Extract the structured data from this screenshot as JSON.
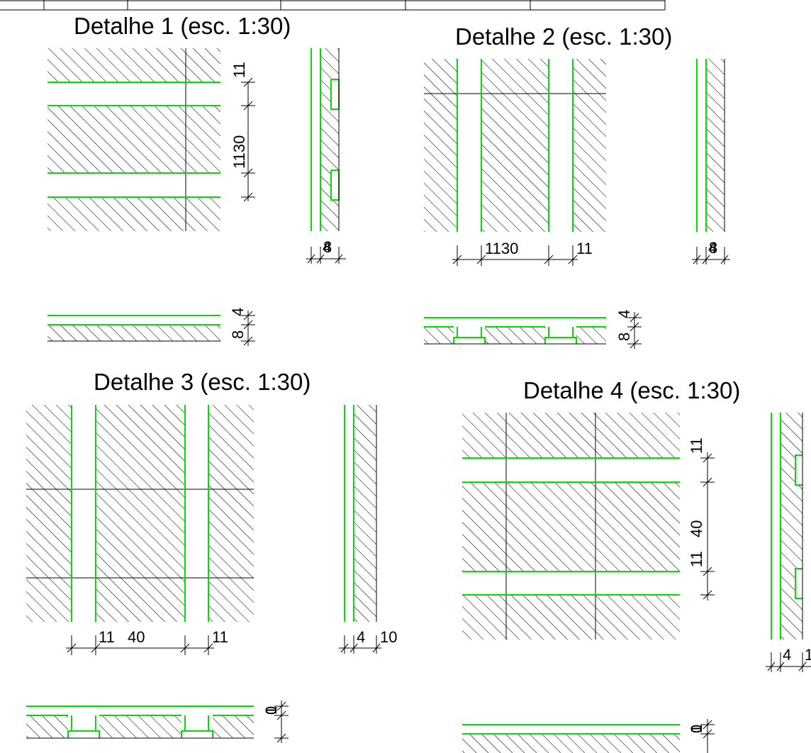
{
  "sheet": {
    "details": [
      {
        "title": "Detalhe 1 (esc. 1:30)",
        "labels": {
          "v_a": "11",
          "v_b": "1130",
          "s_a": "4",
          "s_b": "8",
          "b_a": "4",
          "b_b": "8"
        }
      },
      {
        "title": "Detalhe 2 (esc. 1:30)",
        "labels": {
          "h_a": "1130",
          "h_b": "11",
          "s_a": "4",
          "s_b": "8",
          "b_a": "4",
          "b_b": "8"
        }
      },
      {
        "title": "Detalhe 3 (esc. 1:30)",
        "labels": {
          "h_a": "11",
          "h_b": "40",
          "h_c": "11",
          "s_a": "4",
          "s_b": "10",
          "b_a": "1",
          "b_b": "0"
        }
      },
      {
        "title": "Detalhe 4 (esc. 1:30)",
        "labels": {
          "v_a": "11",
          "v_b": "40",
          "v_c": "11",
          "s_a": "4",
          "s_b": "1",
          "b_a": "1",
          "b_b": "0"
        }
      }
    ],
    "colors": {
      "outline": "#000000",
      "joint": "#00e000",
      "hatch": "#000000",
      "background": "#ffffff"
    }
  }
}
